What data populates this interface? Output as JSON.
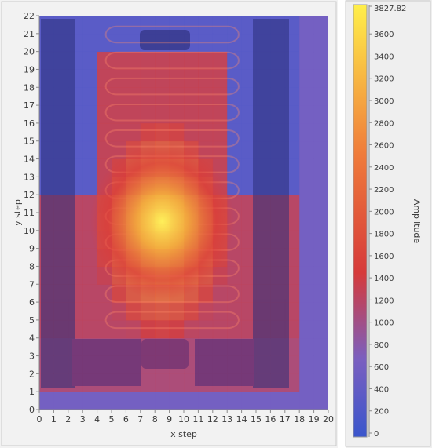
{
  "chart_data": {
    "type": "heatmap",
    "xlabel": "x step",
    "ylabel": "y step",
    "xlim": [
      0,
      20
    ],
    "ylim": [
      0,
      22
    ],
    "x_ticks": [
      "0",
      "1",
      "2",
      "3",
      "4",
      "5",
      "6",
      "7",
      "8",
      "9",
      "10",
      "11",
      "12",
      "13",
      "14",
      "15",
      "16",
      "17",
      "18",
      "19",
      "20"
    ],
    "y_ticks": [
      "0",
      "1",
      "2",
      "3",
      "4",
      "5",
      "6",
      "7",
      "8",
      "9",
      "10",
      "11",
      "12",
      "13",
      "14",
      "15",
      "16",
      "17",
      "18",
      "19",
      "20",
      "21",
      "22"
    ],
    "grid": false,
    "colorbar": {
      "label": "Amplitude",
      "min": 0,
      "max": 3827.82,
      "max_label": "3827.82",
      "ticks": [
        "0",
        "200",
        "400",
        "600",
        "800",
        "1000",
        "1200",
        "1400",
        "1600",
        "1800",
        "2000",
        "2200",
        "2400",
        "2600",
        "2800",
        "3000",
        "3200",
        "3400",
        "3600"
      ],
      "placement": "right",
      "colors": [
        "#3a56cc",
        "#7a5fc0",
        "#d63a3a",
        "#ef7a3a",
        "#ffef4a"
      ]
    },
    "hotspot": {
      "x": 8.5,
      "y": 10.5,
      "peak": 3827.82
    },
    "data_extent": {
      "x": [
        0,
        18
      ],
      "y": [
        1,
        22
      ]
    }
  }
}
